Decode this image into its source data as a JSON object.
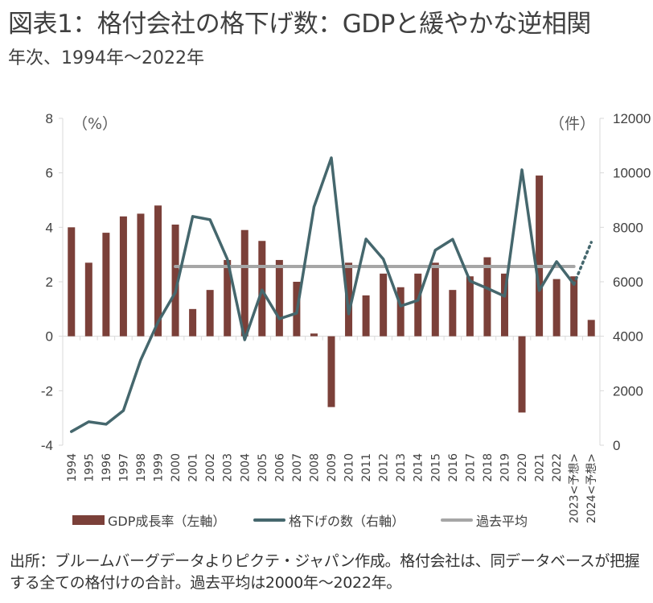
{
  "title": "図表1：格付会社の格下げ数：GDPと緩やかな逆相関",
  "subtitle": "年次、1994年～2022年",
  "footnote": "出所：ブルームバーグデータよりピクテ・ジャパン作成。格付会社は、同データベースが把握する全ての格付けの合計。過去平均は2000年～2022年。",
  "chart_data": {
    "type": "bar+line",
    "title": "図表1：格付会社の格下げ数：GDPと緩やかな逆相関",
    "subtitle": "年次、1994年～2022年",
    "categories": [
      "1994",
      "1995",
      "1996",
      "1997",
      "1998",
      "1999",
      "2000",
      "2001",
      "2002",
      "2003",
      "2004",
      "2005",
      "2006",
      "2007",
      "2008",
      "2009",
      "2010",
      "2011",
      "2012",
      "2013",
      "2014",
      "2015",
      "2016",
      "2017",
      "2018",
      "2019",
      "2020",
      "2021",
      "2022",
      "2023<予想>",
      "2024<予想>"
    ],
    "left_axis": {
      "label": "（%）",
      "ylim": [
        -4,
        8
      ],
      "ticks": [
        "8",
        "6",
        "4",
        "2",
        "0",
        "-2",
        "-4"
      ],
      "tick_values": [
        8,
        6,
        4,
        2,
        0,
        -2,
        -4
      ]
    },
    "right_axis": {
      "label": "（件）",
      "ylim": [
        0,
        12000
      ],
      "ticks": [
        "12000",
        "10000",
        "8000",
        "6000",
        "4000",
        "2000",
        "0"
      ],
      "tick_values": [
        12000,
        10000,
        8000,
        6000,
        4000,
        2000,
        0
      ]
    },
    "series": [
      {
        "name": "GDP成長率（左軸）",
        "type": "bar",
        "axis": "left",
        "color": "#7b4039",
        "values": [
          4.0,
          2.7,
          3.8,
          4.4,
          4.5,
          4.8,
          4.1,
          1.0,
          1.7,
          2.8,
          3.9,
          3.5,
          2.8,
          2.0,
          0.1,
          -2.6,
          2.7,
          1.5,
          2.3,
          1.8,
          2.3,
          2.7,
          1.7,
          2.2,
          2.9,
          2.3,
          -2.8,
          5.9,
          2.1,
          2.2,
          0.6
        ]
      },
      {
        "name": "格下げの数（右軸）",
        "type": "line",
        "axis": "right",
        "color": "#45676d",
        "values": [
          500,
          860,
          770,
          1270,
          3130,
          4520,
          5610,
          8400,
          8280,
          6830,
          3870,
          5700,
          4640,
          4850,
          8750,
          10550,
          4820,
          7570,
          6830,
          5110,
          5320,
          7160,
          7560,
          6030,
          5760,
          5470,
          10110,
          5680,
          6740,
          5910,
          7450
        ],
        "dotted_from_index": 29
      },
      {
        "name": "過去平均",
        "type": "line",
        "axis": "right",
        "color": "#a6a6a6",
        "value": 6560,
        "from_category": "2000",
        "to_category": "2023<予想>"
      }
    ],
    "legend": [
      "GDP成長率（左軸）",
      "格下げの数（右軸）",
      "過去平均"
    ],
    "legend_position": "bottom",
    "grid": false
  }
}
